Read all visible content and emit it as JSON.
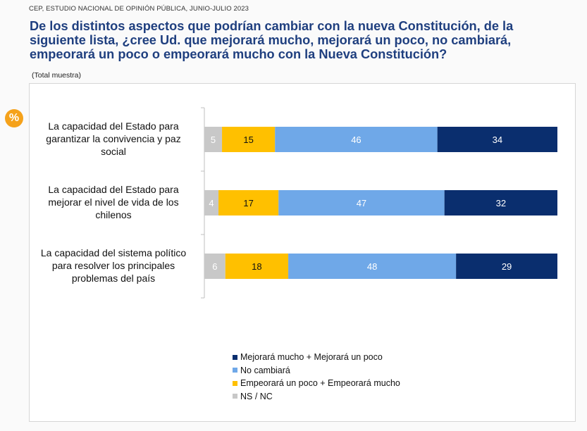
{
  "header": {
    "source": "CEP, ESTUDIO NACIONAL DE OPINIÓN PÚBLICA, JUNIO-JULIO 2023",
    "question_lines": [
      "De los distintos aspectos que podrían cambiar con la nueva Constitución, de la",
      "siguiente lista, ¿cree Ud. que mejorará mucho, mejorará un poco, no cambiará,",
      "empeorará un poco o empeorará mucho con la Nueva Constitución?"
    ],
    "base": "(Total muestra)",
    "badge": "%"
  },
  "chart_data": {
    "type": "bar",
    "orientation": "horizontal",
    "stacked": true,
    "categories": [
      [
        "La capacidad del Estado para",
        "garantizar la convivencia y paz",
        "social"
      ],
      [
        "La capacidad del Estado para",
        "mejorar el nivel de vida de los",
        "chilenos"
      ],
      [
        "La capacidad del sistema político",
        "para resolver los principales",
        "problemas del país"
      ]
    ],
    "series": [
      {
        "name": "NS / NC",
        "color": "#c8c8c8",
        "values": [
          5,
          4,
          6
        ]
      },
      {
        "name": "Empeorará un poco + Empeorará mucho",
        "color": "#ffc000",
        "values": [
          15,
          17,
          18
        ]
      },
      {
        "name": "No cambiará",
        "color": "#6fa8e8",
        "values": [
          46,
          47,
          48
        ]
      },
      {
        "name": "Mejorará mucho + Mejorará un poco",
        "color": "#0a2e6e",
        "values": [
          34,
          32,
          29
        ]
      }
    ],
    "legend_order": [
      3,
      2,
      1,
      0
    ],
    "legend_position": "bottom"
  }
}
